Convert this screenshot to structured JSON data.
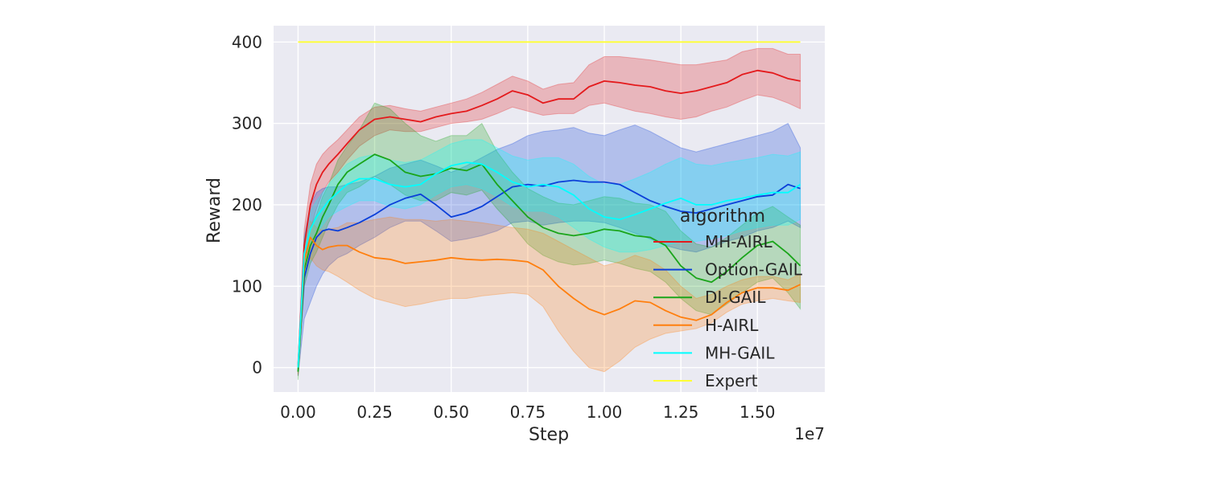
{
  "chart_data": {
    "type": "line",
    "xlabel": "Step",
    "ylabel": "Reward",
    "x_offset_label": "1e7",
    "xlim": [
      -0.08,
      1.72
    ],
    "ylim": [
      -30,
      420
    ],
    "xticks": [
      0,
      0.25,
      0.5,
      0.75,
      1.0,
      1.25,
      1.5
    ],
    "xtick_labels": [
      "0.00",
      "0.25",
      "0.50",
      "0.75",
      "1.00",
      "1.25",
      "1.50"
    ],
    "yticks": [
      0,
      100,
      200,
      300,
      400
    ],
    "ytick_labels": [
      "0",
      "100",
      "200",
      "300",
      "400"
    ],
    "grid": true,
    "legend": {
      "title": "algorithm",
      "placement": "lower-right"
    },
    "x": [
      0,
      0.02,
      0.04,
      0.06,
      0.08,
      0.1,
      0.13,
      0.16,
      0.2,
      0.25,
      0.3,
      0.35,
      0.4,
      0.45,
      0.5,
      0.55,
      0.6,
      0.65,
      0.7,
      0.75,
      0.8,
      0.85,
      0.9,
      0.95,
      1.0,
      1.05,
      1.1,
      1.15,
      1.2,
      1.25,
      1.3,
      1.35,
      1.4,
      1.45,
      1.5,
      1.55,
      1.6,
      1.64
    ],
    "series": [
      {
        "name": "MH-AIRL",
        "color": "#e41a1c",
        "values": [
          0,
          150,
          200,
          225,
          240,
          250,
          262,
          275,
          292,
          305,
          308,
          305,
          302,
          308,
          312,
          315,
          322,
          330,
          340,
          335,
          325,
          330,
          330,
          345,
          352,
          350,
          347,
          345,
          340,
          337,
          340,
          345,
          350,
          360,
          365,
          362,
          355,
          352
        ],
        "lower": [
          -10,
          130,
          170,
          195,
          215,
          228,
          240,
          255,
          272,
          285,
          292,
          290,
          290,
          295,
          300,
          302,
          305,
          312,
          320,
          315,
          310,
          312,
          312,
          322,
          325,
          320,
          315,
          312,
          308,
          305,
          308,
          315,
          320,
          328,
          335,
          332,
          325,
          318
        ],
        "upper": [
          10,
          170,
          225,
          250,
          262,
          270,
          280,
          292,
          308,
          320,
          322,
          318,
          315,
          320,
          325,
          330,
          338,
          348,
          358,
          352,
          342,
          348,
          350,
          372,
          382,
          382,
          380,
          378,
          375,
          372,
          372,
          375,
          378,
          388,
          392,
          392,
          385,
          385
        ]
      },
      {
        "name": "Option-GAIL",
        "color": "#0b3fd9",
        "values": [
          0,
          110,
          140,
          160,
          168,
          170,
          168,
          172,
          178,
          188,
          200,
          208,
          213,
          200,
          185,
          190,
          198,
          210,
          222,
          225,
          223,
          228,
          230,
          228,
          228,
          225,
          215,
          205,
          198,
          192,
          190,
          195,
          200,
          205,
          210,
          212,
          225,
          220
        ],
        "lower": [
          -10,
          60,
          80,
          100,
          115,
          125,
          135,
          140,
          150,
          160,
          172,
          180,
          180,
          168,
          155,
          158,
          162,
          168,
          178,
          180,
          175,
          178,
          180,
          180,
          178,
          172,
          165,
          158,
          150,
          145,
          142,
          148,
          155,
          160,
          168,
          172,
          180,
          172
        ],
        "upper": [
          10,
          160,
          200,
          215,
          220,
          222,
          222,
          225,
          228,
          235,
          245,
          250,
          255,
          248,
          240,
          248,
          258,
          268,
          275,
          285,
          290,
          292,
          295,
          288,
          285,
          292,
          298,
          290,
          280,
          270,
          265,
          270,
          275,
          280,
          285,
          290,
          300,
          270
        ]
      },
      {
        "name": "DI-GAIL",
        "color": "#1aa51a",
        "values": [
          -5,
          120,
          150,
          165,
          185,
          200,
          225,
          240,
          250,
          262,
          255,
          240,
          235,
          238,
          245,
          242,
          250,
          225,
          205,
          185,
          172,
          165,
          162,
          165,
          170,
          168,
          162,
          160,
          150,
          125,
          110,
          105,
          118,
          135,
          150,
          155,
          140,
          125
        ],
        "lower": [
          -15,
          100,
          128,
          142,
          160,
          178,
          200,
          215,
          222,
          235,
          225,
          212,
          205,
          205,
          215,
          212,
          218,
          195,
          175,
          152,
          138,
          130,
          126,
          128,
          132,
          128,
          122,
          118,
          105,
          85,
          70,
          65,
          78,
          92,
          105,
          110,
          92,
          72
        ],
        "upper": [
          5,
          140,
          172,
          188,
          210,
          225,
          255,
          272,
          292,
          325,
          318,
          300,
          285,
          278,
          285,
          285,
          300,
          265,
          240,
          220,
          210,
          202,
          200,
          205,
          210,
          208,
          202,
          200,
          192,
          168,
          152,
          148,
          160,
          175,
          190,
          198,
          185,
          175
        ]
      },
      {
        "name": "H-AIRL",
        "color": "#ff7f0e",
        "values": [
          0,
          130,
          160,
          150,
          145,
          148,
          150,
          150,
          142,
          135,
          133,
          128,
          130,
          132,
          135,
          133,
          132,
          133,
          132,
          130,
          120,
          100,
          85,
          72,
          65,
          72,
          82,
          80,
          70,
          62,
          58,
          65,
          80,
          92,
          98,
          98,
          95,
          102
        ],
        "lower": [
          -8,
          110,
          135,
          125,
          120,
          118,
          112,
          105,
          95,
          85,
          80,
          75,
          78,
          82,
          85,
          85,
          88,
          90,
          92,
          90,
          75,
          45,
          20,
          0,
          -5,
          8,
          25,
          35,
          42,
          45,
          48,
          55,
          68,
          78,
          82,
          85,
          82,
          80
        ],
        "upper": [
          8,
          150,
          180,
          172,
          168,
          170,
          172,
          178,
          178,
          182,
          185,
          182,
          182,
          180,
          182,
          180,
          178,
          175,
          172,
          170,
          165,
          155,
          145,
          135,
          125,
          130,
          138,
          132,
          120,
          100,
          85,
          90,
          100,
          108,
          112,
          112,
          108,
          115
        ]
      },
      {
        "name": "MH-GAIL",
        "color": "#00ffff",
        "values": [
          0,
          140,
          170,
          185,
          195,
          205,
          215,
          225,
          232,
          232,
          225,
          222,
          225,
          238,
          248,
          252,
          250,
          240,
          228,
          222,
          225,
          222,
          212,
          195,
          185,
          182,
          188,
          195,
          202,
          208,
          200,
          200,
          205,
          208,
          212,
          215,
          215,
          225
        ],
        "lower": [
          -5,
          120,
          150,
          165,
          175,
          185,
          192,
          198,
          205,
          205,
          198,
          195,
          200,
          212,
          222,
          225,
          220,
          210,
          198,
          192,
          192,
          185,
          172,
          158,
          148,
          142,
          142,
          145,
          150,
          155,
          155,
          158,
          162,
          168,
          172,
          175,
          175,
          182
        ],
        "upper": [
          5,
          160,
          192,
          205,
          215,
          225,
          238,
          250,
          258,
          262,
          255,
          252,
          255,
          265,
          275,
          280,
          280,
          270,
          260,
          255,
          258,
          258,
          250,
          235,
          225,
          225,
          232,
          240,
          250,
          258,
          250,
          248,
          252,
          255,
          258,
          262,
          260,
          265
        ]
      },
      {
        "name": "Expert",
        "color": "#ffff33",
        "values": [
          400,
          400,
          400,
          400,
          400,
          400,
          400,
          400,
          400,
          400,
          400,
          400,
          400,
          400,
          400,
          400,
          400,
          400,
          400,
          400,
          400,
          400,
          400,
          400,
          400,
          400,
          400,
          400,
          400,
          400,
          400,
          400,
          400,
          400,
          400,
          400,
          400,
          400
        ]
      }
    ]
  }
}
